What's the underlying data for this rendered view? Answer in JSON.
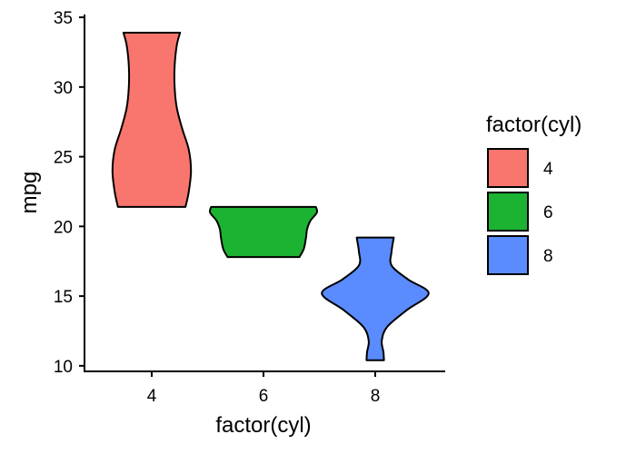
{
  "chart_data": {
    "type": "violin",
    "xlabel": "factor(cyl)",
    "ylabel": "mpg",
    "categories": [
      "4",
      "6",
      "8"
    ],
    "ylim": [
      9.6,
      35.2
    ],
    "yticks": [
      10,
      15,
      20,
      25,
      30,
      35
    ],
    "grid": false,
    "legend": {
      "title": "factor(cyl)",
      "placement": "right",
      "entries": [
        {
          "label": "4",
          "color": "#F8766D"
        },
        {
          "label": "6",
          "color": "#1CB332"
        },
        {
          "label": "8",
          "color": "#5A8BFF"
        }
      ]
    },
    "series": [
      {
        "category": "4",
        "color": "#F8766D",
        "min": 21.4,
        "max": 33.9,
        "profile": [
          {
            "y": 21.4,
            "d": 0.62
          },
          {
            "y": 22.5,
            "d": 0.68
          },
          {
            "y": 24.0,
            "d": 0.72
          },
          {
            "y": 25.5,
            "d": 0.68
          },
          {
            "y": 27.0,
            "d": 0.56
          },
          {
            "y": 28.5,
            "d": 0.46
          },
          {
            "y": 30.0,
            "d": 0.42
          },
          {
            "y": 31.5,
            "d": 0.42
          },
          {
            "y": 33.0,
            "d": 0.46
          },
          {
            "y": 33.9,
            "d": 0.52
          }
        ]
      },
      {
        "category": "6",
        "color": "#1CB332",
        "min": 17.8,
        "max": 21.4,
        "profile": [
          {
            "y": 17.8,
            "d": 0.66
          },
          {
            "y": 18.4,
            "d": 0.74
          },
          {
            "y": 19.2,
            "d": 0.78
          },
          {
            "y": 19.8,
            "d": 0.8
          },
          {
            "y": 20.4,
            "d": 0.86
          },
          {
            "y": 21.0,
            "d": 0.98
          },
          {
            "y": 21.4,
            "d": 0.96
          }
        ]
      },
      {
        "category": "8",
        "color": "#5A8BFF",
        "min": 10.4,
        "max": 19.2,
        "profile": [
          {
            "y": 10.4,
            "d": 0.16
          },
          {
            "y": 11.0,
            "d": 0.15
          },
          {
            "y": 11.8,
            "d": 0.12
          },
          {
            "y": 12.8,
            "d": 0.22
          },
          {
            "y": 14.0,
            "d": 0.58
          },
          {
            "y": 15.2,
            "d": 0.98
          },
          {
            "y": 16.2,
            "d": 0.6
          },
          {
            "y": 17.2,
            "d": 0.3
          },
          {
            "y": 18.2,
            "d": 0.3
          },
          {
            "y": 19.2,
            "d": 0.34
          }
        ]
      }
    ]
  }
}
